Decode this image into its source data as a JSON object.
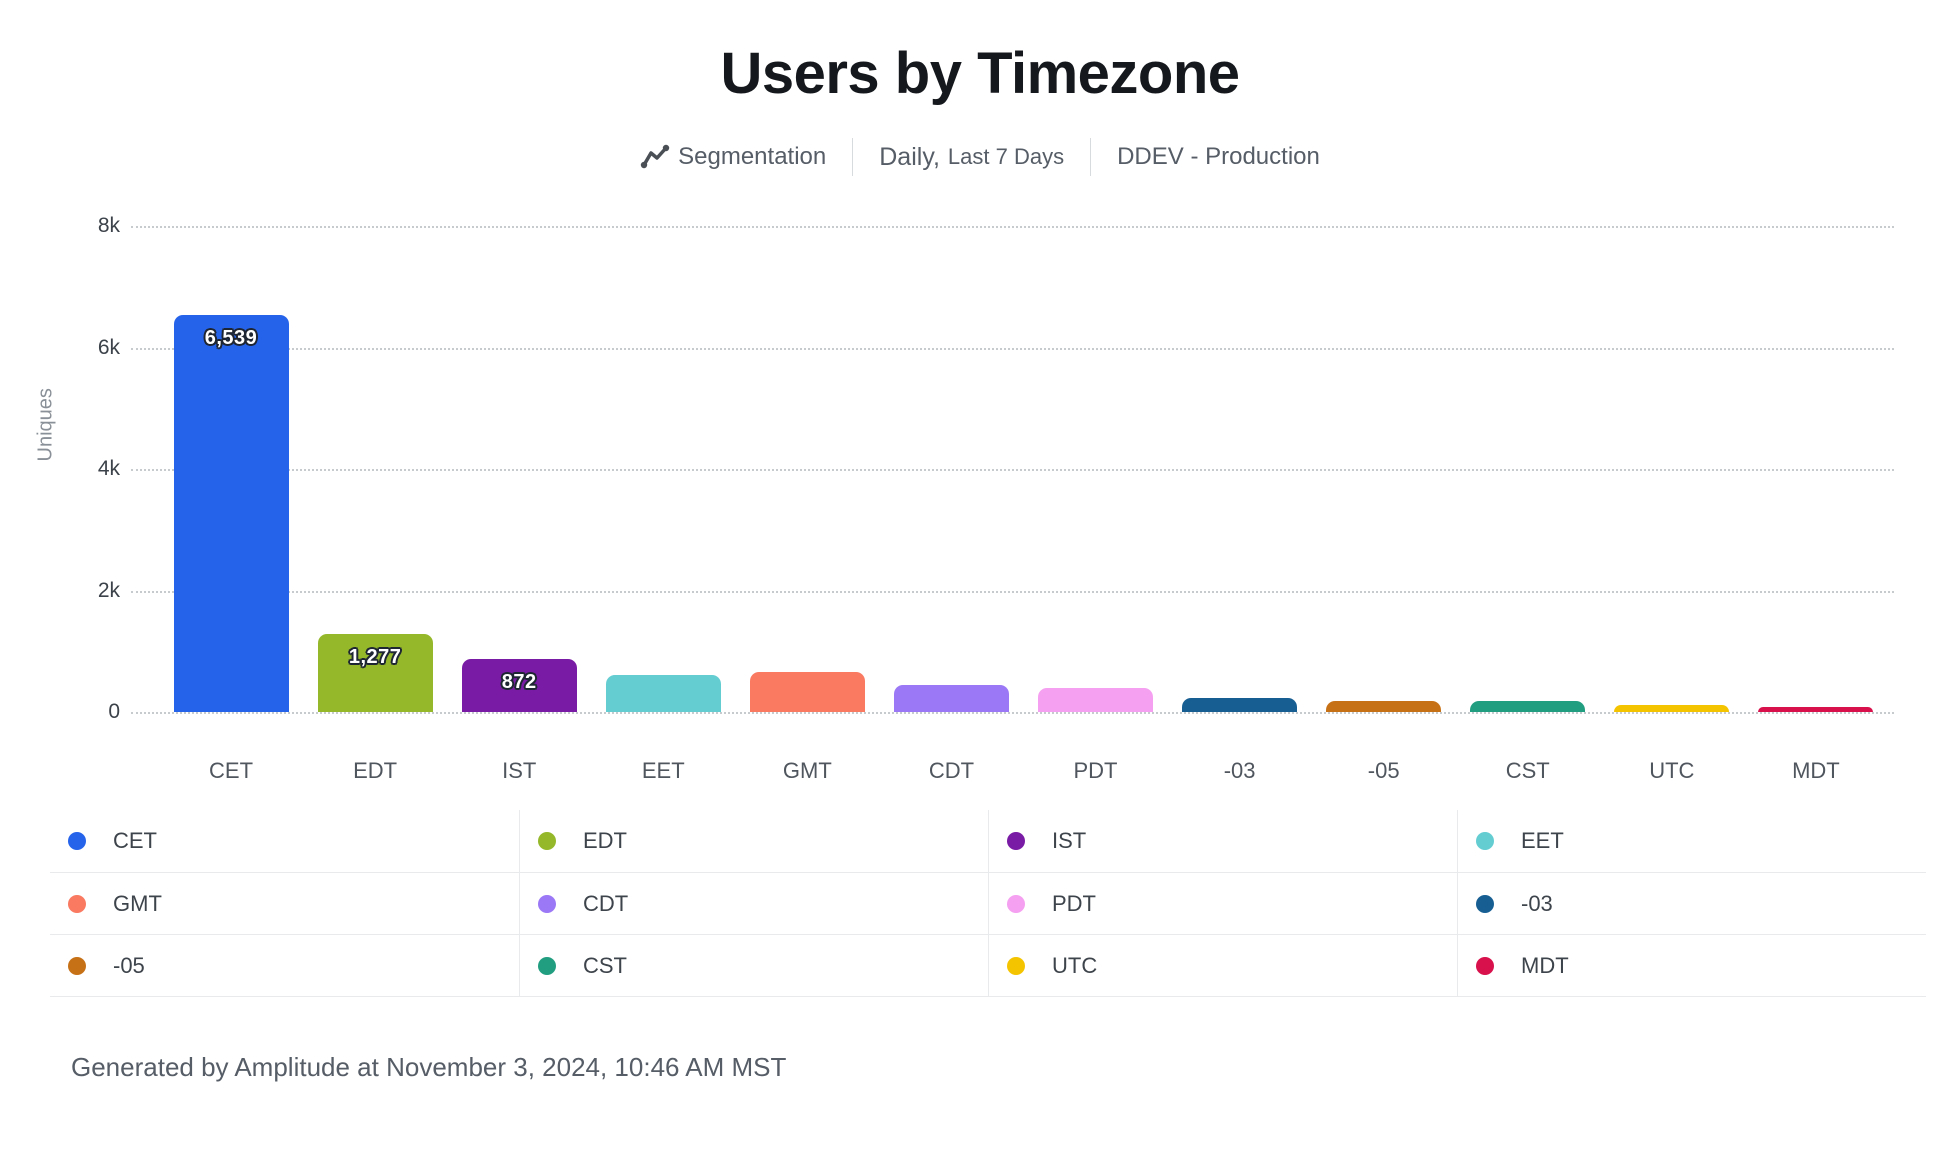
{
  "header": {
    "title": "Users by Timezone",
    "subtitle": {
      "chart_type": "Segmentation",
      "frequency": "Daily,",
      "range": "Last 7 Days",
      "project": "DDEV - Production"
    }
  },
  "chart_data": {
    "type": "bar",
    "title": "Users by Timezone",
    "xlabel": "",
    "ylabel": "Uniques",
    "ylim": [
      0,
      8000
    ],
    "yticks": [
      0,
      2000,
      4000,
      6000,
      8000
    ],
    "ytick_labels": [
      "0",
      "2k",
      "4k",
      "6k",
      "8k"
    ],
    "grid": "horizontal-dotted",
    "legend_position": "bottom-grid-4-columns",
    "categories": [
      "CET",
      "EDT",
      "IST",
      "EET",
      "GMT",
      "CDT",
      "PDT",
      "-03",
      "-05",
      "CST",
      "UTC",
      "MDT"
    ],
    "values": [
      6539,
      1277,
      872,
      610,
      655,
      450,
      390,
      225,
      180,
      180,
      120,
      85
    ],
    "value_labels": [
      "6,539",
      "1,277",
      "872",
      "",
      "",
      "",
      "",
      "",
      "",
      "",
      "",
      ""
    ],
    "colors": [
      "#2563eb",
      "#94b829",
      "#7a1ba5",
      "#63cdd2",
      "#f97961",
      "#9b78f6",
      "#f5a0f0",
      "#175f93",
      "#c77117",
      "#219e80",
      "#f5c400",
      "#d8104c"
    ]
  },
  "legend": {
    "items": [
      {
        "label": "CET",
        "color": "#2563eb"
      },
      {
        "label": "EDT",
        "color": "#94b829"
      },
      {
        "label": "IST",
        "color": "#7a1ba5"
      },
      {
        "label": "EET",
        "color": "#63cdd2"
      },
      {
        "label": "GMT",
        "color": "#f97961"
      },
      {
        "label": "CDT",
        "color": "#9b78f6"
      },
      {
        "label": "PDT",
        "color": "#f5a0f0"
      },
      {
        "label": "-03",
        "color": "#175f93"
      },
      {
        "label": "-05",
        "color": "#c77117"
      },
      {
        "label": "CST",
        "color": "#219e80"
      },
      {
        "label": "UTC",
        "color": "#f5c400"
      },
      {
        "label": "MDT",
        "color": "#d8104c"
      }
    ]
  },
  "footer": {
    "text": "Generated by Amplitude at November 3, 2024, 10:46 AM MST"
  }
}
